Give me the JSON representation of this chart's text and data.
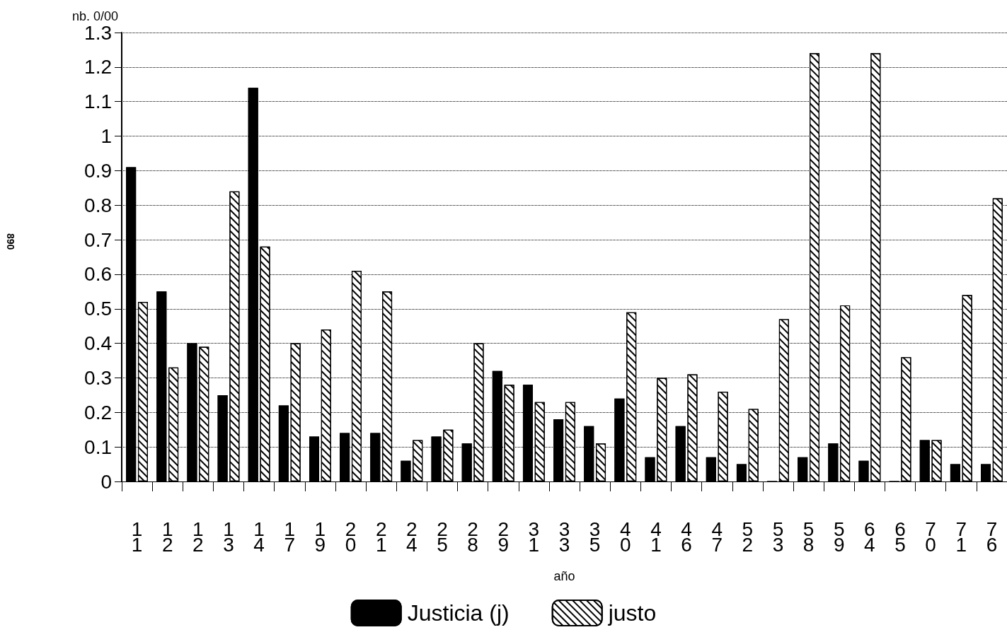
{
  "chart_data": {
    "type": "bar",
    "xlabel": "año",
    "ylabel": "nb. 0/00",
    "categories": [
      "11",
      "12",
      "12",
      "13",
      "14",
      "17",
      "19",
      "20",
      "21",
      "24",
      "25",
      "28",
      "29",
      "31",
      "33",
      "35",
      "40",
      "41",
      "46",
      "47",
      "52",
      "53",
      "58",
      "59",
      "64",
      "65",
      "70",
      "71",
      "76"
    ],
    "series": [
      {
        "name": "Justicia (j)",
        "color": "#000000",
        "values": [
          0.91,
          0.55,
          0.4,
          0.25,
          1.14,
          0.22,
          0.13,
          0.14,
          0.14,
          0.06,
          0.13,
          0.11,
          0.32,
          0.28,
          0.18,
          0.16,
          0.24,
          0.07,
          0.16,
          0.07,
          0.05,
          0,
          0.07,
          0.11,
          0.06,
          0,
          0.12,
          0.05,
          0.05
        ]
      },
      {
        "name": "justo",
        "color": "#ffffff",
        "values": [
          0.52,
          0.33,
          0.39,
          0.84,
          0.68,
          0.4,
          0.44,
          0.61,
          0.55,
          0.12,
          0.15,
          0.4,
          0.28,
          0.23,
          0.23,
          0.11,
          0.49,
          0.3,
          0.31,
          0.26,
          0.21,
          0.47,
          1.24,
          0.51,
          1.24,
          0.36,
          0.12,
          0.54,
          0.82
        ]
      }
    ],
    "ylim": [
      0,
      1.3
    ],
    "yticks": [
      0,
      0.1,
      0.2,
      0.3,
      0.4,
      0.5,
      0.6,
      0.7,
      0.8,
      0.9,
      1,
      1.1,
      1.2,
      1.3
    ],
    "grid": "y",
    "legend": "bottom",
    "annotations": [
      "890"
    ]
  }
}
